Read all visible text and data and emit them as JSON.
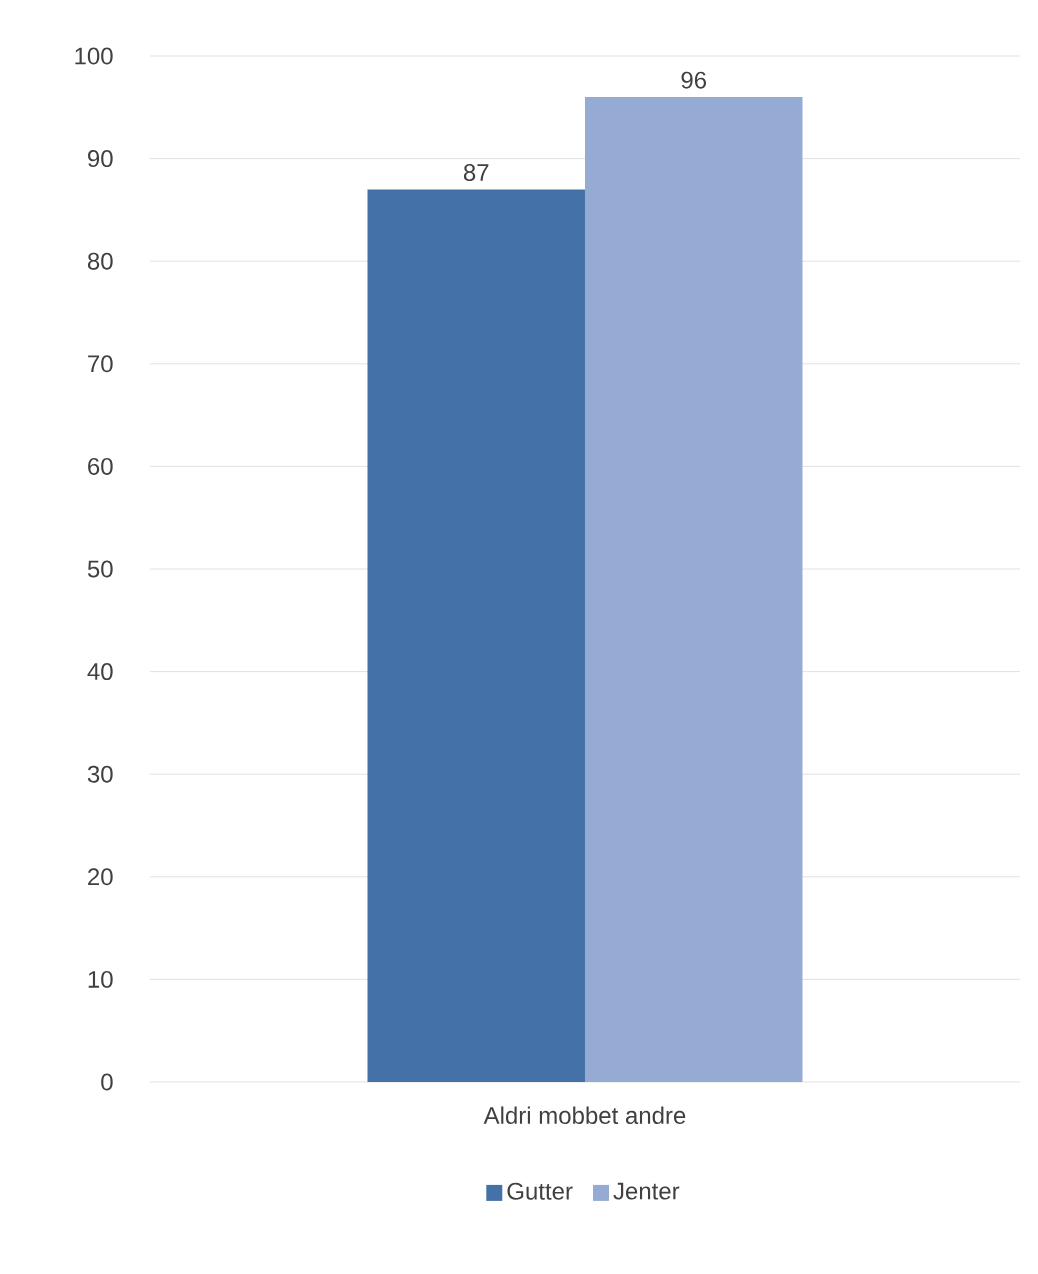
{
  "chart_data": {
    "type": "bar",
    "categories": [
      "Aldri mobbet andre"
    ],
    "series": [
      {
        "name": "Gutter",
        "color": "#4472a8",
        "values": [
          87
        ]
      },
      {
        "name": "Jenter",
        "color": "#95abd4",
        "values": [
          96
        ]
      }
    ],
    "ylim": [
      0,
      100
    ],
    "yticks": [
      0,
      10,
      20,
      30,
      40,
      50,
      60,
      70,
      80,
      90,
      100
    ],
    "grid": "y",
    "legend": "bottom",
    "data_labels": true
  }
}
